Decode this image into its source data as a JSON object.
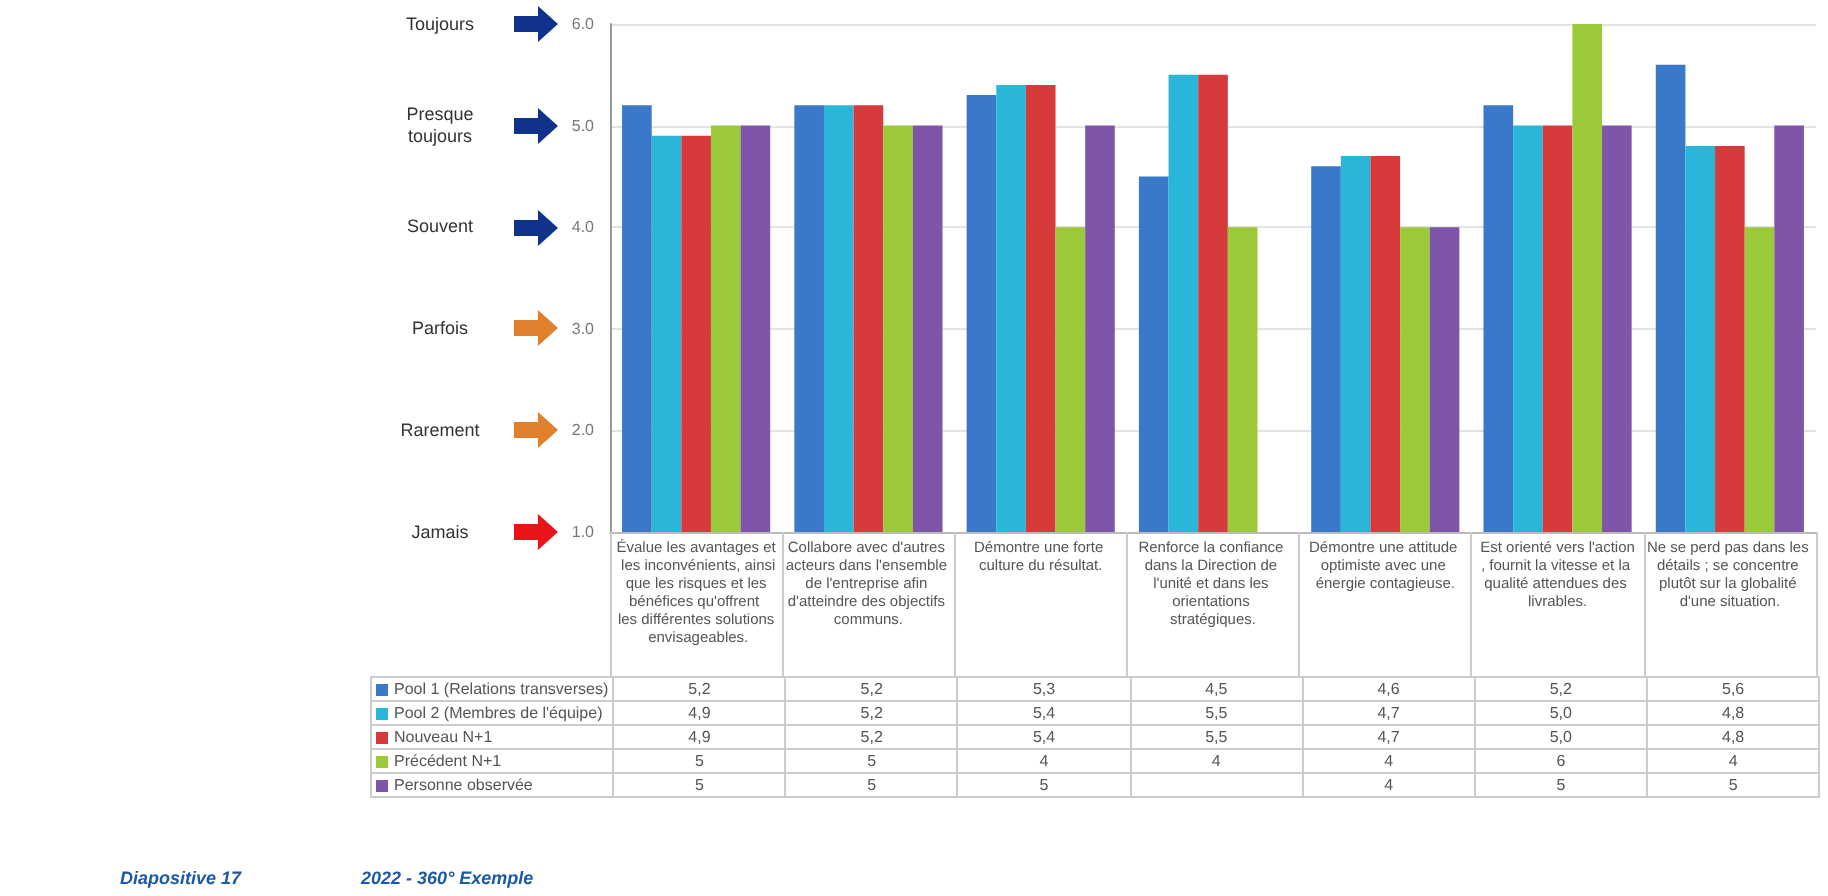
{
  "chart_data": {
    "type": "bar",
    "categories": [
      "Évalue les avantages et les inconvénients, ainsi que les risques et les bénéfices qu'offrent les différentes solutions envisageables.",
      "Collabore avec d'autres acteurs dans l'ensemble de l'entreprise afin d'atteindre des objectifs communs.",
      "Démontre une forte culture du résultat.",
      "Renforce la confiance dans la Direction de l'unité et dans les orientations stratégiques.",
      "Démontre une attitude optimiste avec une énergie contagieuse.",
      "Est orienté vers l'action, fournit la vitesse et la qualité attendues des livrables.",
      "Ne se perd pas dans les détails ; se concentre plutôt sur la globalité d'une situation."
    ],
    "series": [
      {
        "name": "Pool 1 (Relations transverses)",
        "color": "#3a78c9",
        "values": [
          5.2,
          5.2,
          5.3,
          4.5,
          4.6,
          5.2,
          5.6
        ],
        "value_labels": [
          "5,2",
          "5,2",
          "5,3",
          "4,5",
          "4,6",
          "5,2",
          "5,6"
        ]
      },
      {
        "name": "Pool 2 (Membres de l'équipe)",
        "color": "#2ab6d9",
        "values": [
          4.9,
          5.2,
          5.4,
          5.5,
          4.7,
          5.0,
          4.8
        ],
        "value_labels": [
          "4,9",
          "5,2",
          "5,4",
          "5,5",
          "4,7",
          "5,0",
          "4,8"
        ]
      },
      {
        "name": "Nouveau N+1",
        "color": "#d63a3a",
        "values": [
          4.9,
          5.2,
          5.4,
          5.5,
          4.7,
          5.0,
          4.8
        ],
        "value_labels": [
          "4,9",
          "5,2",
          "5,4",
          "5,5",
          "4,7",
          "5,0",
          "4,8"
        ]
      },
      {
        "name": "Précédent N+1",
        "color": "#9bc93a",
        "values": [
          5,
          5,
          4,
          4,
          4,
          6,
          4
        ],
        "value_labels": [
          "5",
          "5",
          "4",
          "4",
          "4",
          "6",
          "4"
        ]
      },
      {
        "name": "Personne observée",
        "color": "#7e55a8",
        "values": [
          5,
          5,
          5,
          null,
          4,
          5,
          5
        ],
        "value_labels": [
          "5",
          "5",
          "5",
          null,
          "4",
          "5",
          "5"
        ]
      }
    ],
    "ylim": [
      1,
      6
    ],
    "yticks": [
      {
        "value": 1,
        "label": "1.0"
      },
      {
        "value": 2,
        "label": "2.0"
      },
      {
        "value": 3,
        "label": "3.0"
      },
      {
        "value": 4,
        "label": "4.0"
      },
      {
        "value": 5,
        "label": "5.0"
      },
      {
        "value": 6,
        "label": "6.0"
      }
    ],
    "grid": "y",
    "legend": "bottom left",
    "annotations": [
      "Toujours",
      "Presque toujours",
      "Souvent",
      "Parfois",
      "Rarement",
      "Jamais",
      "Diapositive 17",
      "2022 - 360° Exemple"
    ]
  }
}
